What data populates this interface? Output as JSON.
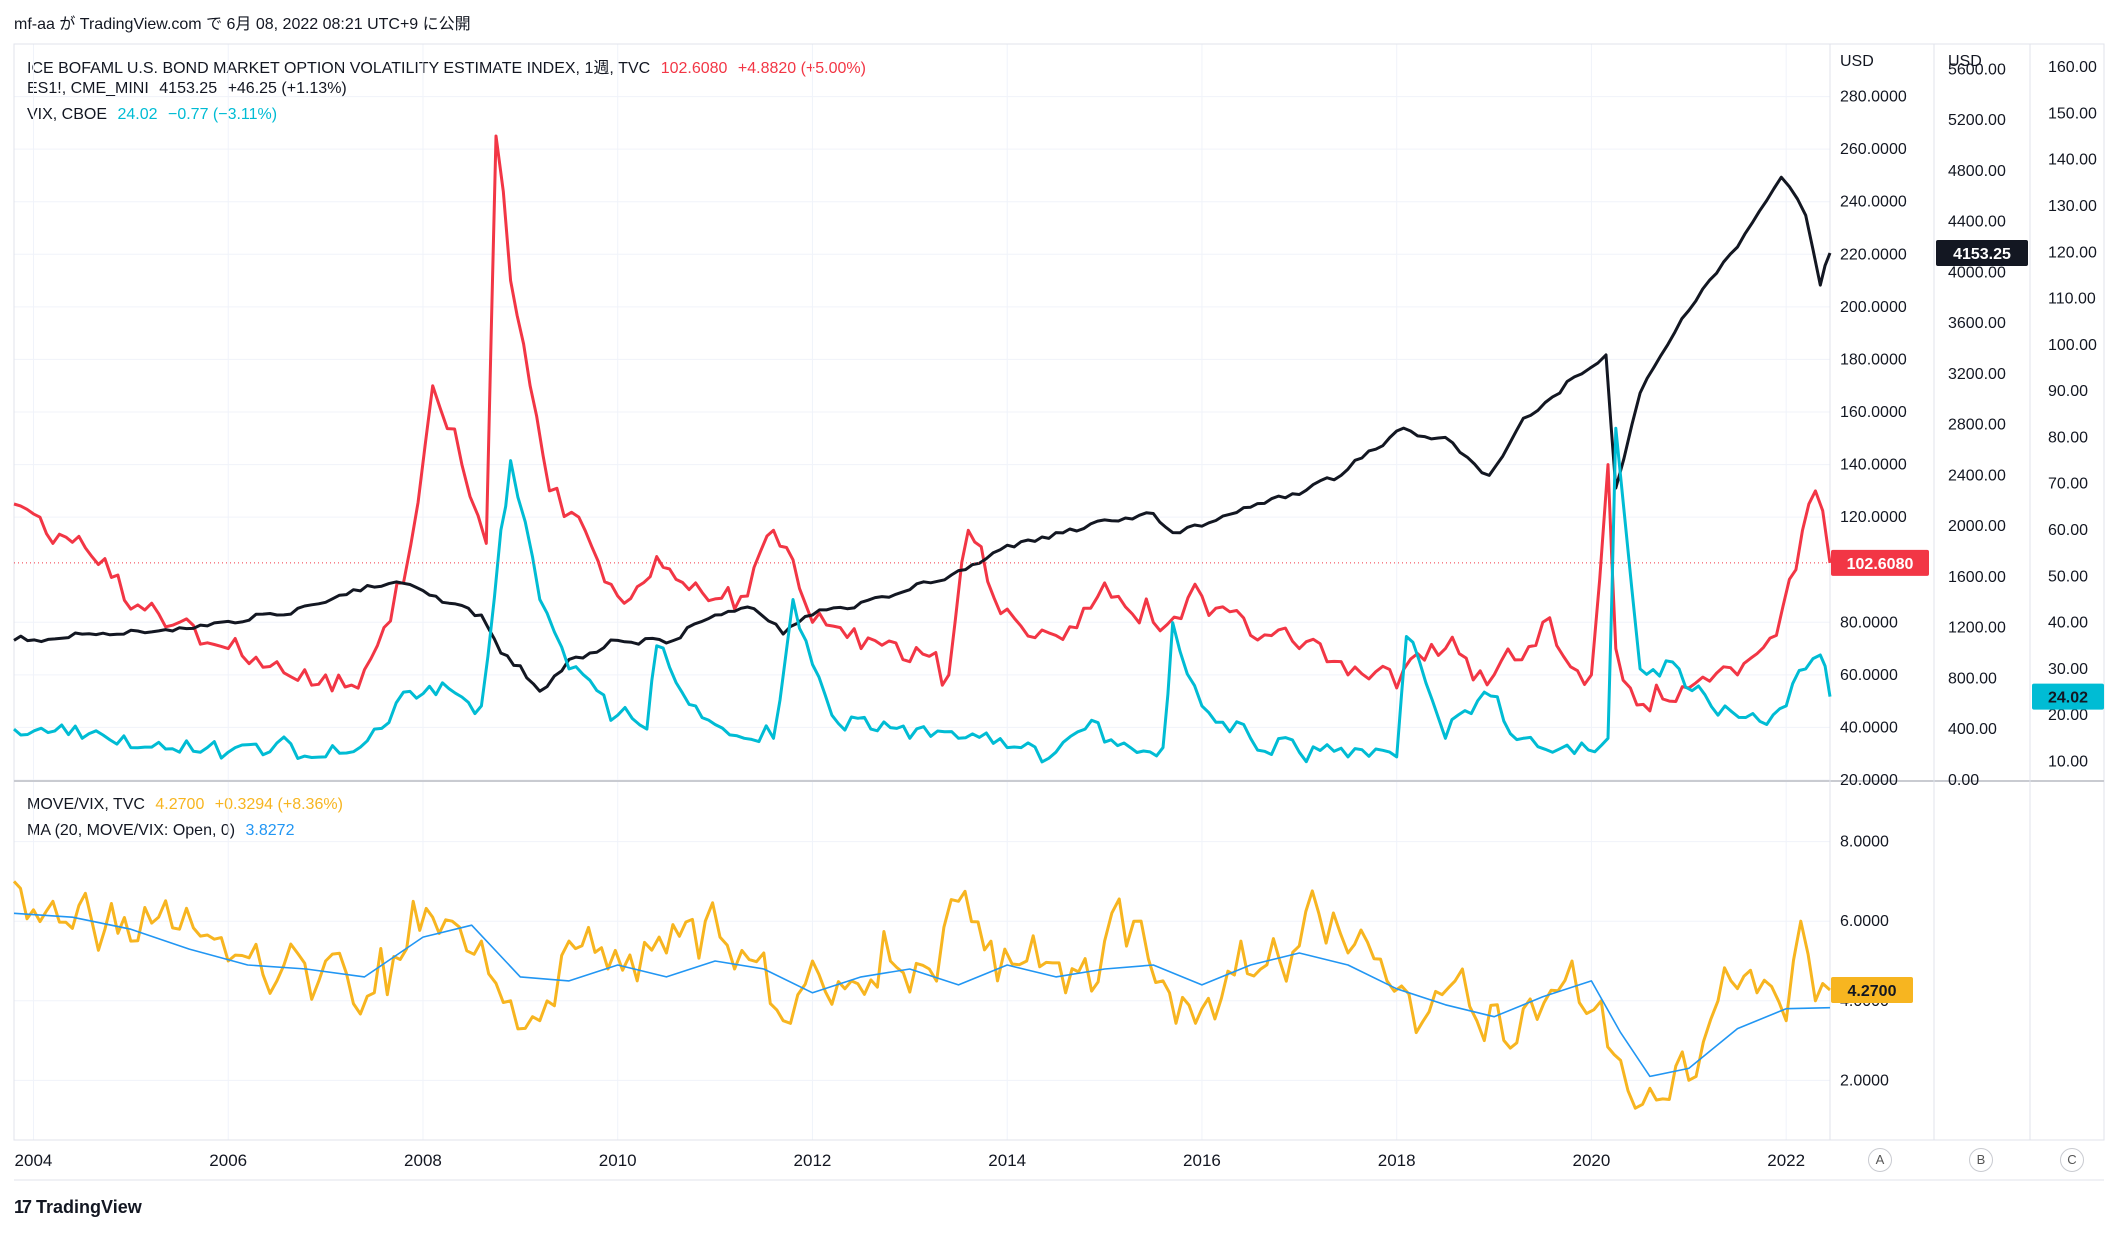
{
  "header": {
    "publish_line": "mf-aa が TradingView.com で 6月 08, 2022 08:21 UTC+9 に公開"
  },
  "footer": {
    "brand": "TradingView"
  },
  "scale_buttons": [
    "A",
    "B",
    "C"
  ],
  "legend_top": [
    {
      "name": "ICE BOFAML U.S. BOND MARKET OPTION VOLATILITY ESTIMATE INDEX, 1週, TVC",
      "value": "102.6080",
      "change": "+4.8820 (+5.00%)",
      "color": "#f23645"
    },
    {
      "name": "ES1!, CME_MINI",
      "value": "4153.25",
      "change": "+46.25 (+1.13%)",
      "color": "#131722"
    },
    {
      "name": "VIX, CBOE",
      "value": "24.02",
      "change": "−0.77 (−3.11%)",
      "color": "#00bcd4"
    }
  ],
  "legend_bottom": [
    {
      "name": "MOVE/VIX, TVC",
      "value": "4.2700",
      "change": "+0.3294 (+8.36%)",
      "color": "#f7b520"
    },
    {
      "name": "MA (20, MOVE/VIX: Open, 0)",
      "value": "3.8272",
      "change": "",
      "color": "#2196f3"
    }
  ],
  "axis_units": {
    "move": "USD",
    "es": "USD"
  },
  "price_tags": {
    "move": "102.6080",
    "es": "4153.25",
    "vix": "24.02",
    "ratio": "4.2700"
  },
  "chart_data": [
    {
      "type": "line",
      "x_ticks": [
        "2004",
        "2006",
        "2008",
        "2010",
        "2012",
        "2014",
        "2016",
        "2018",
        "2020",
        "2022"
      ],
      "x_range": [
        2003.8,
        2022.45
      ],
      "axes": {
        "move": {
          "ticks": [
            "20.0000",
            "40.0000",
            "60.0000",
            "80.0000",
            "120.0000",
            "140.0000",
            "160.0000",
            "180.0000",
            "200.0000",
            "220.0000",
            "240.0000",
            "260.0000",
            "280.0000"
          ],
          "range": [
            20,
            300
          ]
        },
        "es": {
          "ticks": [
            "0.00",
            "400.00",
            "800.00",
            "1200.00",
            "1600.00",
            "2000.00",
            "2400.00",
            "2800.00",
            "3200.00",
            "3600.00",
            "4000.00",
            "4400.00",
            "4800.00",
            "5200.00",
            "5600.00"
          ],
          "range": [
            0,
            5800
          ]
        },
        "vix": {
          "ticks": [
            "10.00",
            "20.00",
            "30.00",
            "40.00",
            "50.00",
            "60.00",
            "70.00",
            "80.00",
            "90.00",
            "100.00",
            "110.00",
            "120.00",
            "130.00",
            "140.00",
            "150.00",
            "160.00"
          ],
          "range": [
            6,
            165
          ]
        }
      },
      "series": [
        {
          "name": "ICE BOFAML U.S. BOND MARKET OPTION VOLATILITY ESTIMATE INDEX",
          "axis": "move",
          "color": "#f23645",
          "x": [
            2003.8,
            2004.2,
            2004.6,
            2005.0,
            2005.5,
            2006.0,
            2006.5,
            2007.0,
            2007.4,
            2007.8,
            2008.1,
            2008.4,
            2008.65,
            2008.75,
            2008.9,
            2009.1,
            2009.3,
            2009.6,
            2010.0,
            2010.4,
            2010.8,
            2011.2,
            2011.6,
            2012.0,
            2012.5,
            2013.0,
            2013.4,
            2013.6,
            2014.0,
            2014.5,
            2015.0,
            2015.5,
            2016.0,
            2016.5,
            2017.0,
            2017.5,
            2018.0,
            2018.5,
            2019.0,
            2019.5,
            2020.0,
            2020.17,
            2020.25,
            2020.4,
            2020.8,
            2021.0,
            2021.5,
            2021.9,
            2022.1,
            2022.3,
            2022.45
          ],
          "y": [
            125,
            110,
            105,
            85,
            80,
            70,
            65,
            60,
            62,
            95,
            170,
            140,
            110,
            265,
            210,
            170,
            130,
            120,
            90,
            105,
            95,
            85,
            115,
            80,
            70,
            65,
            60,
            115,
            85,
            75,
            95,
            80,
            90,
            75,
            70,
            60,
            55,
            70,
            60,
            80,
            60,
            140,
            70,
            55,
            50,
            55,
            60,
            75,
            100,
            130,
            102.6
          ]
        },
        {
          "name": "ES1!, CME_MINI",
          "axis": "es",
          "color": "#131722",
          "x": [
            2003.8,
            2004.5,
            2005.0,
            2005.5,
            2006.0,
            2006.5,
            2007.0,
            2007.5,
            2007.8,
            2008.2,
            2008.6,
            2008.8,
            2009.0,
            2009.2,
            2009.5,
            2010.0,
            2010.5,
            2011.0,
            2011.4,
            2011.7,
            2012.0,
            2012.5,
            2013.0,
            2013.5,
            2014.0,
            2014.5,
            2015.0,
            2015.5,
            2015.7,
            2016.0,
            2016.5,
            2017.0,
            2017.5,
            2018.0,
            2018.5,
            2018.95,
            2019.3,
            2019.9,
            2020.15,
            2020.25,
            2020.5,
            2021.0,
            2021.5,
            2021.95,
            2022.2,
            2022.35,
            2022.45
          ],
          "y": [
            1100,
            1150,
            1180,
            1200,
            1250,
            1300,
            1400,
            1520,
            1550,
            1400,
            1300,
            1000,
            900,
            700,
            950,
            1100,
            1080,
            1300,
            1350,
            1150,
            1300,
            1400,
            1500,
            1650,
            1850,
            1950,
            2050,
            2100,
            1950,
            2000,
            2150,
            2250,
            2450,
            2750,
            2700,
            2400,
            2850,
            3200,
            3350,
            2300,
            3050,
            3700,
            4200,
            4750,
            4450,
            3900,
            4153.25
          ]
        },
        {
          "name": "VIX, CBOE",
          "axis": "vix",
          "color": "#00bcd4",
          "x": [
            2003.8,
            2004.5,
            2005.0,
            2005.5,
            2006.0,
            2006.5,
            2007.0,
            2007.5,
            2007.8,
            2008.2,
            2008.6,
            2008.8,
            2008.9,
            2009.2,
            2009.5,
            2010.0,
            2010.3,
            2010.4,
            2010.8,
            2011.0,
            2011.6,
            2011.8,
            2012.2,
            2012.6,
            2013.0,
            2013.5,
            2014.0,
            2014.5,
            2014.8,
            2015.2,
            2015.6,
            2015.7,
            2016.0,
            2016.5,
            2017.0,
            2017.5,
            2018.0,
            2018.1,
            2018.5,
            2018.9,
            2019.3,
            2019.9,
            2020.17,
            2020.25,
            2020.5,
            2020.9,
            2021.3,
            2021.8,
            2022.0,
            2022.2,
            2022.35,
            2022.45
          ],
          "y": [
            17,
            15,
            13,
            12,
            12,
            14,
            11,
            17,
            25,
            27,
            22,
            60,
            75,
            45,
            30,
            20,
            17,
            35,
            22,
            18,
            15,
            45,
            20,
            17,
            15,
            15,
            13,
            12,
            17,
            14,
            13,
            40,
            22,
            15,
            12,
            11,
            11,
            37,
            15,
            25,
            15,
            14,
            15,
            82,
            30,
            30,
            20,
            18,
            22,
            30,
            33,
            24.02
          ]
        }
      ]
    },
    {
      "type": "line",
      "x_ticks": [
        "2004",
        "2006",
        "2008",
        "2010",
        "2012",
        "2014",
        "2016",
        "2018",
        "2020",
        "2022"
      ],
      "x_range": [
        2003.8,
        2022.45
      ],
      "y_ticks": [
        "2.0000",
        "4.0000",
        "6.0000",
        "8.0000"
      ],
      "ylim": [
        0.5,
        9.5
      ],
      "series": [
        {
          "name": "MOVE/VIX, TVC",
          "color": "#f7b520",
          "x": [
            2003.8,
            2004.2,
            2004.6,
            2005.0,
            2005.5,
            2006.0,
            2006.5,
            2007.0,
            2007.5,
            2007.9,
            2008.3,
            2008.6,
            2008.9,
            2009.2,
            2009.5,
            2009.9,
            2010.2,
            2010.5,
            2010.9,
            2011.2,
            2011.5,
            2011.7,
            2012.0,
            2012.4,
            2012.8,
            2013.2,
            2013.5,
            2013.9,
            2014.2,
            2014.6,
            2015.0,
            2015.3,
            2015.6,
            2016.0,
            2016.4,
            2016.8,
            2017.2,
            2017.5,
            2017.9,
            2018.2,
            2018.6,
            2018.9,
            2019.3,
            2019.8,
            2020.1,
            2020.3,
            2020.6,
            2021.0,
            2021.3,
            2021.7,
            2022.0,
            2022.15,
            2022.3,
            2022.45
          ],
          "y": [
            7,
            6.5,
            6,
            5.5,
            5.8,
            5,
            4.5,
            5,
            4.2,
            6.5,
            6,
            5.5,
            4,
            3.5,
            5.5,
            4.8,
            4.5,
            5.2,
            6,
            4.8,
            5.2,
            3.5,
            5,
            4.5,
            5,
            4.8,
            6.5,
            4.5,
            5,
            4.2,
            5.5,
            6,
            4.5,
            3.8,
            5.5,
            5,
            6.2,
            5.2,
            4.5,
            3.2,
            4.5,
            3,
            3.8,
            5,
            4,
            2.5,
            1.8,
            2,
            4,
            4.2,
            3.5,
            6,
            4,
            4.27
          ]
        },
        {
          "name": "MA (20, MOVE/VIX: Open, 0)",
          "color": "#2196f3",
          "x": [
            2003.8,
            2004.4,
            2005.0,
            2005.6,
            2006.2,
            2006.8,
            2007.4,
            2008.0,
            2008.5,
            2009.0,
            2009.5,
            2010.0,
            2010.5,
            2011.0,
            2011.5,
            2012.0,
            2012.5,
            2013.0,
            2013.5,
            2014.0,
            2014.5,
            2015.0,
            2015.5,
            2016.0,
            2016.5,
            2017.0,
            2017.5,
            2018.0,
            2018.5,
            2019.0,
            2019.5,
            2020.0,
            2020.3,
            2020.6,
            2021.0,
            2021.5,
            2022.0,
            2022.45
          ],
          "y": [
            6.2,
            6.1,
            5.8,
            5.3,
            4.9,
            4.8,
            4.6,
            5.6,
            5.9,
            4.6,
            4.5,
            4.9,
            4.6,
            5.0,
            4.8,
            4.2,
            4.6,
            4.8,
            4.4,
            4.9,
            4.6,
            4.8,
            4.9,
            4.4,
            4.9,
            5.2,
            4.9,
            4.3,
            3.9,
            3.6,
            4.1,
            4.5,
            3.2,
            2.1,
            2.3,
            3.3,
            3.8,
            3.8272
          ]
        }
      ]
    }
  ]
}
